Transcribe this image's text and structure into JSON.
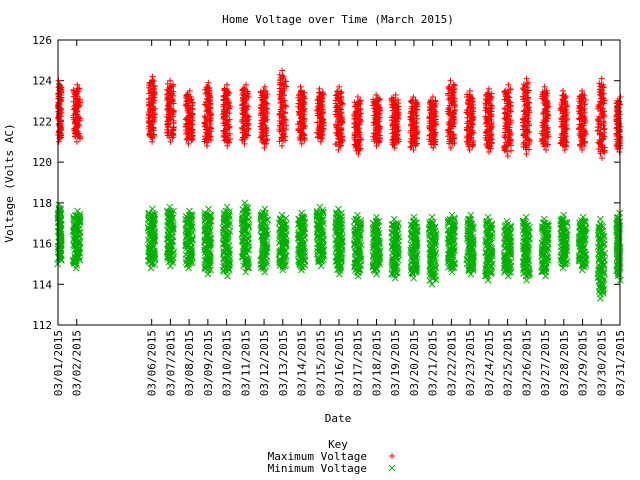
{
  "chart_data": {
    "type": "scatter",
    "title": "Home Voltage over Time (March 2015)",
    "xlabel": "Date",
    "ylabel": "Voltage (Volts AC)",
    "ylim": [
      112,
      126
    ],
    "yticks": [
      112,
      114,
      116,
      118,
      120,
      122,
      124,
      126
    ],
    "xlim": [
      "03/01/2015",
      "03/31/2015"
    ],
    "xticks": [
      "03/01/2015",
      "03/02/2015",
      "03/06/2015",
      "03/07/2015",
      "03/08/2015",
      "03/09/2015",
      "03/10/2015",
      "03/11/2015",
      "03/12/2015",
      "03/13/2015",
      "03/14/2015",
      "03/15/2015",
      "03/16/2015",
      "03/17/2015",
      "03/18/2015",
      "03/19/2015",
      "03/20/2015",
      "03/21/2015",
      "03/22/2015",
      "03/23/2015",
      "03/24/2015",
      "03/25/2015",
      "03/26/2015",
      "03/27/2015",
      "03/28/2015",
      "03/29/2015",
      "03/30/2015",
      "03/31/2015"
    ],
    "grid": false,
    "legend": {
      "title": "Key",
      "placement": "bottom-center"
    },
    "series": [
      {
        "name": "Maximum Voltage",
        "marker": "plus",
        "color": "#ff0000",
        "days": [
          {
            "date": "03/01/2015",
            "low": 121.0,
            "high": 124.0
          },
          {
            "date": "03/02/2015",
            "low": 121.0,
            "high": 123.8
          },
          {
            "date": "03/06/2015",
            "low": 121.0,
            "high": 124.2
          },
          {
            "date": "03/07/2015",
            "low": 121.0,
            "high": 124.0
          },
          {
            "date": "03/08/2015",
            "low": 120.9,
            "high": 123.5
          },
          {
            "date": "03/09/2015",
            "low": 120.8,
            "high": 123.9
          },
          {
            "date": "03/10/2015",
            "low": 120.8,
            "high": 123.8
          },
          {
            "date": "03/11/2015",
            "low": 120.9,
            "high": 123.8
          },
          {
            "date": "03/12/2015",
            "low": 120.7,
            "high": 123.7
          },
          {
            "date": "03/13/2015",
            "low": 120.8,
            "high": 124.5
          },
          {
            "date": "03/14/2015",
            "low": 120.9,
            "high": 123.7
          },
          {
            "date": "03/15/2015",
            "low": 121.0,
            "high": 123.6
          },
          {
            "date": "03/16/2015",
            "low": 120.6,
            "high": 123.7
          },
          {
            "date": "03/17/2015",
            "low": 120.4,
            "high": 123.2
          },
          {
            "date": "03/18/2015",
            "low": 120.8,
            "high": 123.3
          },
          {
            "date": "03/19/2015",
            "low": 120.7,
            "high": 123.3
          },
          {
            "date": "03/20/2015",
            "low": 120.6,
            "high": 123.2
          },
          {
            "date": "03/21/2015",
            "low": 120.7,
            "high": 123.2
          },
          {
            "date": "03/22/2015",
            "low": 120.7,
            "high": 124.0
          },
          {
            "date": "03/23/2015",
            "low": 120.6,
            "high": 123.5
          },
          {
            "date": "03/24/2015",
            "low": 120.5,
            "high": 123.6
          },
          {
            "date": "03/25/2015",
            "low": 120.3,
            "high": 123.8
          },
          {
            "date": "03/26/2015",
            "low": 120.4,
            "high": 124.1
          },
          {
            "date": "03/27/2015",
            "low": 120.6,
            "high": 123.7
          },
          {
            "date": "03/28/2015",
            "low": 120.6,
            "high": 123.5
          },
          {
            "date": "03/29/2015",
            "low": 120.6,
            "high": 123.5
          },
          {
            "date": "03/30/2015",
            "low": 120.2,
            "high": 124.1
          },
          {
            "date": "03/31/2015",
            "low": 120.5,
            "high": 123.2
          }
        ]
      },
      {
        "name": "Minimum Voltage",
        "marker": "cross",
        "color": "#00b000",
        "days": [
          {
            "date": "03/01/2015",
            "low": 115.0,
            "high": 117.9
          },
          {
            "date": "03/02/2015",
            "low": 114.8,
            "high": 117.6
          },
          {
            "date": "03/06/2015",
            "low": 114.8,
            "high": 117.7
          },
          {
            "date": "03/07/2015",
            "low": 114.9,
            "high": 117.8
          },
          {
            "date": "03/08/2015",
            "low": 114.8,
            "high": 117.6
          },
          {
            "date": "03/09/2015",
            "low": 114.5,
            "high": 117.7
          },
          {
            "date": "03/10/2015",
            "low": 114.4,
            "high": 117.8
          },
          {
            "date": "03/11/2015",
            "low": 114.6,
            "high": 118.0
          },
          {
            "date": "03/12/2015",
            "low": 114.6,
            "high": 117.7
          },
          {
            "date": "03/13/2015",
            "low": 114.7,
            "high": 117.4
          },
          {
            "date": "03/14/2015",
            "low": 114.7,
            "high": 117.5
          },
          {
            "date": "03/15/2015",
            "low": 114.9,
            "high": 117.8
          },
          {
            "date": "03/16/2015",
            "low": 114.5,
            "high": 117.7
          },
          {
            "date": "03/17/2015",
            "low": 114.4,
            "high": 117.4
          },
          {
            "date": "03/18/2015",
            "low": 114.5,
            "high": 117.3
          },
          {
            "date": "03/19/2015",
            "low": 114.3,
            "high": 117.2
          },
          {
            "date": "03/20/2015",
            "low": 114.3,
            "high": 117.3
          },
          {
            "date": "03/21/2015",
            "low": 114.0,
            "high": 117.3
          },
          {
            "date": "03/22/2015",
            "low": 114.6,
            "high": 117.4
          },
          {
            "date": "03/23/2015",
            "low": 114.5,
            "high": 117.4
          },
          {
            "date": "03/24/2015",
            "low": 114.2,
            "high": 117.3
          },
          {
            "date": "03/25/2015",
            "low": 114.4,
            "high": 117.1
          },
          {
            "date": "03/26/2015",
            "low": 114.2,
            "high": 117.3
          },
          {
            "date": "03/27/2015",
            "low": 114.4,
            "high": 117.2
          },
          {
            "date": "03/28/2015",
            "low": 114.8,
            "high": 117.4
          },
          {
            "date": "03/29/2015",
            "low": 114.7,
            "high": 117.3
          },
          {
            "date": "03/30/2015",
            "low": 113.3,
            "high": 117.2
          },
          {
            "date": "03/31/2015",
            "low": 114.2,
            "high": 117.5
          }
        ]
      }
    ]
  }
}
